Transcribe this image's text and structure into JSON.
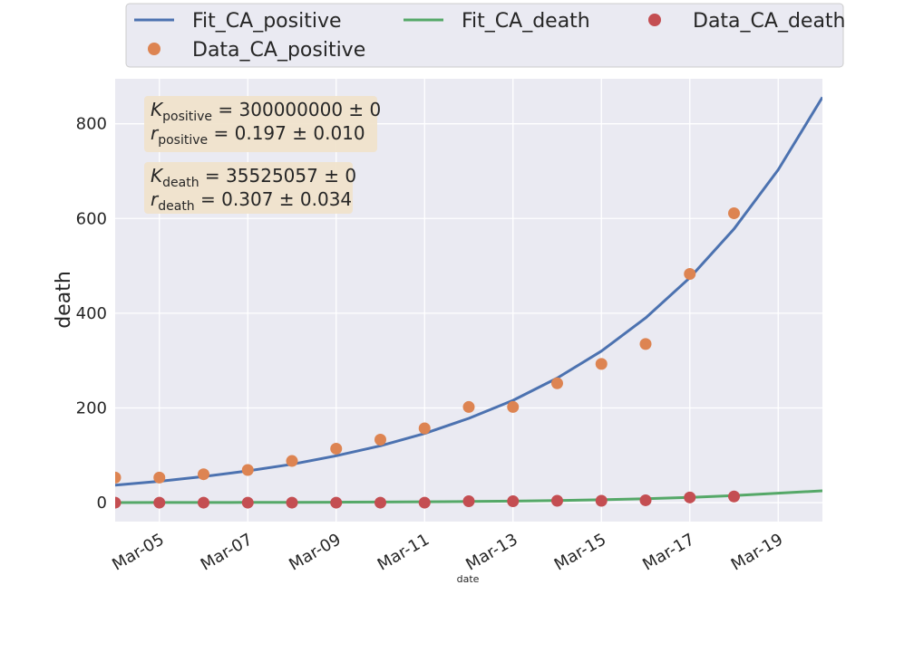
{
  "chart_data": {
    "type": "line",
    "xlabel": "date",
    "ylabel": "death",
    "x_dates": [
      "Mar-04",
      "Mar-05",
      "Mar-06",
      "Mar-07",
      "Mar-08",
      "Mar-09",
      "Mar-10",
      "Mar-11",
      "Mar-12",
      "Mar-13",
      "Mar-14",
      "Mar-15",
      "Mar-16",
      "Mar-17",
      "Mar-18",
      "Mar-19",
      "Mar-20"
    ],
    "x_tick_labels": [
      "Mar-05",
      "Mar-07",
      "Mar-09",
      "Mar-11",
      "Mar-13",
      "Mar-15",
      "Mar-17",
      "Mar-19"
    ],
    "xlim": [
      "Mar-04",
      "Mar-20"
    ],
    "ylim": [
      -40,
      895
    ],
    "y_ticks": [
      0,
      200,
      400,
      600,
      800
    ],
    "grid": true,
    "legend_placement": "top",
    "series": [
      {
        "name": "Fit_CA_positive",
        "kind": "line",
        "color": "#4c72b0",
        "x": [
          "Mar-04",
          "Mar-05",
          "Mar-06",
          "Mar-07",
          "Mar-08",
          "Mar-09",
          "Mar-10",
          "Mar-11",
          "Mar-12",
          "Mar-13",
          "Mar-14",
          "Mar-15",
          "Mar-16",
          "Mar-17",
          "Mar-18",
          "Mar-19",
          "Mar-20"
        ],
        "y": [
          37,
          45,
          55,
          67,
          81,
          99,
          120,
          146,
          178,
          216,
          263,
          320,
          390,
          475,
          578,
          703,
          856
        ]
      },
      {
        "name": "Fit_CA_death",
        "kind": "line",
        "color": "#55a868",
        "x": [
          "Mar-04",
          "Mar-05",
          "Mar-06",
          "Mar-07",
          "Mar-08",
          "Mar-09",
          "Mar-10",
          "Mar-11",
          "Mar-12",
          "Mar-13",
          "Mar-14",
          "Mar-15",
          "Mar-16",
          "Mar-17",
          "Mar-18",
          "Mar-19",
          "Mar-20"
        ],
        "y": [
          0.2,
          0.3,
          0.4,
          0.5,
          0.7,
          1.0,
          1.3,
          1.8,
          2.4,
          3.2,
          4.4,
          6.0,
          8.1,
          11,
          15,
          20,
          25
        ]
      },
      {
        "name": "Data_CA_death",
        "kind": "scatter",
        "color": "#c44e52",
        "x": [
          "Mar-04",
          "Mar-05",
          "Mar-06",
          "Mar-07",
          "Mar-08",
          "Mar-09",
          "Mar-10",
          "Mar-11",
          "Mar-12",
          "Mar-13",
          "Mar-14",
          "Mar-15",
          "Mar-16",
          "Mar-17",
          "Mar-18"
        ],
        "y": [
          0,
          0,
          0,
          0,
          0,
          0,
          0,
          0,
          3,
          3,
          4,
          4,
          5,
          11,
          13
        ]
      },
      {
        "name": "Data_CA_positive",
        "kind": "scatter",
        "color": "#dd8452",
        "x": [
          "Mar-04",
          "Mar-05",
          "Mar-06",
          "Mar-07",
          "Mar-08",
          "Mar-09",
          "Mar-10",
          "Mar-11",
          "Mar-12",
          "Mar-13",
          "Mar-14",
          "Mar-15",
          "Mar-16",
          "Mar-17",
          "Mar-18"
        ],
        "y": [
          53,
          53,
          60,
          69,
          88,
          114,
          133,
          157,
          202,
          202,
          252,
          293,
          335,
          483,
          611
        ]
      }
    ],
    "annotations": [
      {
        "lines": [
          {
            "var": "K",
            "sub": "positive",
            "text": " = 300000000 ± 0"
          },
          {
            "var": "r",
            "sub": "positive",
            "text": " = 0.197 ± 0.010"
          }
        ]
      },
      {
        "lines": [
          {
            "var": "K",
            "sub": "death",
            "text": " = 35525057 ± 0"
          },
          {
            "var": "r",
            "sub": "death",
            "text": " = 0.307 ± 0.034"
          }
        ]
      }
    ]
  }
}
